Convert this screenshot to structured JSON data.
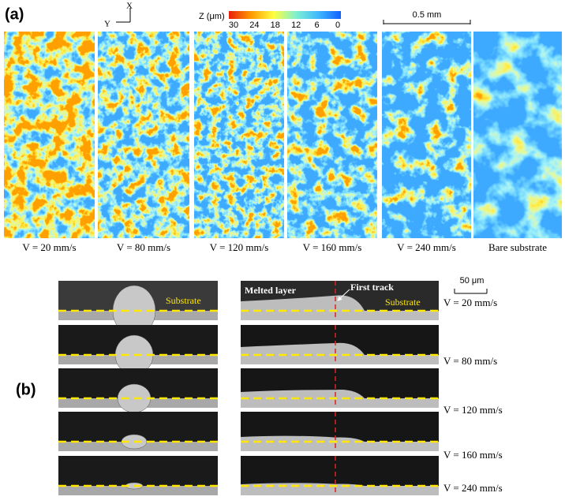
{
  "panel_a": {
    "label": "(a)",
    "axes": {
      "x": "X",
      "y": "Y"
    },
    "colorbar": {
      "title": "Z (μm)",
      "ticks": [
        30,
        24,
        18,
        12,
        6,
        0
      ]
    },
    "scale_bar": "0.5 mm",
    "captions": [
      "V = 20 mm/s",
      "V = 80 mm/s",
      "V = 120 mm/s",
      "V = 160 mm/s",
      "V = 240 mm/s",
      "Bare substrate"
    ]
  },
  "panel_b": {
    "label": "(b)",
    "scale_bar": "50 μm",
    "annotations": {
      "substrate_left": "Substrate",
      "melted_layer": "Melted layer",
      "first_track": "First track",
      "substrate_right": "Substrate"
    },
    "speeds": [
      "V = 20 mm/s",
      "V = 80 mm/s",
      "V = 120 mm/s",
      "V = 160 mm/s",
      "V = 240 mm/s"
    ]
  }
}
